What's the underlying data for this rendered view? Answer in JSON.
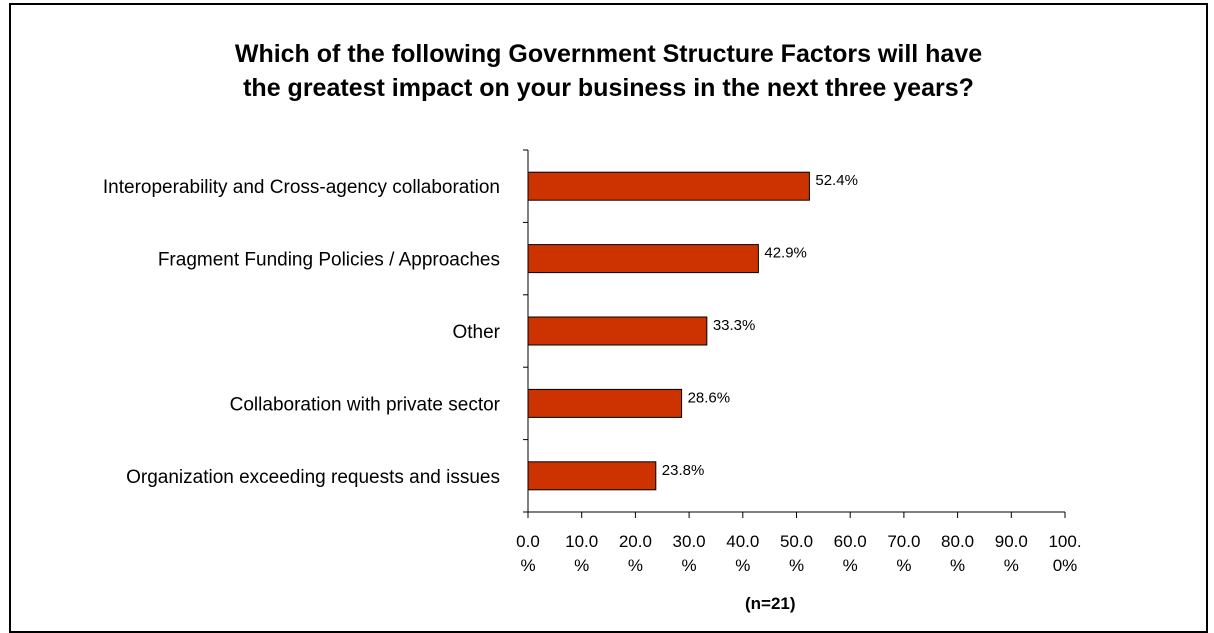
{
  "chart_data": {
    "type": "bar",
    "orientation": "horizontal",
    "title": [
      "Which of the following Government Structure Factors will have",
      "the greatest impact on your business in the next three years?"
    ],
    "categories": [
      "Interoperability and Cross-agency collaboration",
      "Fragment Funding Policies / Approaches",
      "Other",
      "Collaboration with private sector",
      "Organization exceeding requests and issues"
    ],
    "values": [
      52.4,
      42.9,
      33.3,
      28.6,
      23.8
    ],
    "value_labels": [
      "52.4%",
      "42.9%",
      "33.3%",
      "28.6%",
      "23.8%"
    ],
    "xlim": [
      0,
      100
    ],
    "x_ticks": [
      0,
      10,
      20,
      30,
      40,
      50,
      60,
      70,
      80,
      90,
      100
    ],
    "x_tick_labels": [
      [
        "0.0",
        "%"
      ],
      [
        "10.0",
        "%"
      ],
      [
        "20.0",
        "%"
      ],
      [
        "30.0",
        "%"
      ],
      [
        "40.0",
        "%"
      ],
      [
        "50.0",
        "%"
      ],
      [
        "60.0",
        "%"
      ],
      [
        "70.0",
        "%"
      ],
      [
        "80.0",
        "%"
      ],
      [
        "90.0",
        "%"
      ],
      [
        "100.",
        "0%"
      ]
    ],
    "note": "(n=21)",
    "grid": false,
    "legend": "none",
    "bar_color": "#cc3300",
    "bar_border_color": "#000000"
  }
}
